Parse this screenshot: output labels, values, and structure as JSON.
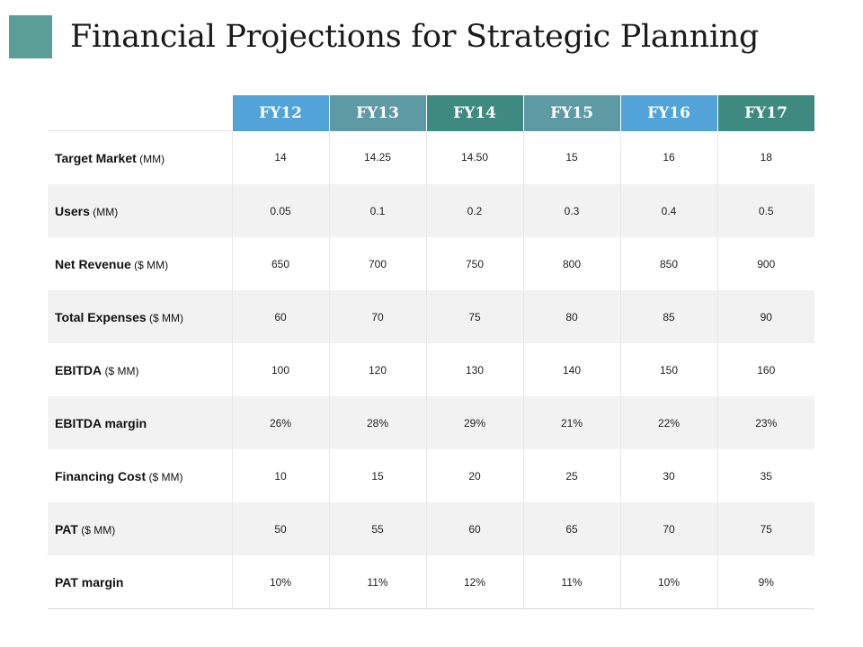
{
  "title": "Financial Projections for Strategic Planning",
  "colors": {
    "accent_square": "#5b9e98",
    "header_light_blue": "#51a3d8",
    "header_slate": "#5e9aa3",
    "header_teal": "#3f8a80"
  },
  "columns": [
    {
      "label": "FY12",
      "color": "#51a3d8"
    },
    {
      "label": "FY13",
      "color": "#5e9aa3"
    },
    {
      "label": "FY14",
      "color": "#3f8a80"
    },
    {
      "label": "FY15",
      "color": "#5e9aa3"
    },
    {
      "label": "FY16",
      "color": "#51a3d8"
    },
    {
      "label": "FY17",
      "color": "#3f8a80"
    }
  ],
  "rows": [
    {
      "label": "Target Market",
      "unit": "(MM)",
      "values": [
        "14",
        "14.25",
        "14.50",
        "15",
        "16",
        "18"
      ]
    },
    {
      "label": "Users",
      "unit": "(MM)",
      "values": [
        "0.05",
        "0.1",
        "0.2",
        "0.3",
        "0.4",
        "0.5"
      ]
    },
    {
      "label": "Net Revenue",
      "unit": "($ MM)",
      "values": [
        "650",
        "700",
        "750",
        "800",
        "850",
        "900"
      ]
    },
    {
      "label": "Total Expenses",
      "unit": "($ MM)",
      "values": [
        "60",
        "70",
        "75",
        "80",
        "85",
        "90"
      ]
    },
    {
      "label": "EBITDA",
      "unit": "($ MM)",
      "values": [
        "100",
        "120",
        "130",
        "140",
        "150",
        "160"
      ]
    },
    {
      "label": "EBITDA margin",
      "unit": "",
      "values": [
        "26%",
        "28%",
        "29%",
        "21%",
        "22%",
        "23%"
      ]
    },
    {
      "label": "Financing Cost",
      "unit": "($ MM)",
      "values": [
        "10",
        "15",
        "20",
        "25",
        "30",
        "35"
      ]
    },
    {
      "label": "PAT",
      "unit": "($ MM)",
      "values": [
        "50",
        "55",
        "60",
        "65",
        "70",
        "75"
      ]
    },
    {
      "label": "PAT margin",
      "unit": "",
      "values": [
        "10%",
        "11%",
        "12%",
        "11%",
        "10%",
        "9%"
      ]
    }
  ]
}
